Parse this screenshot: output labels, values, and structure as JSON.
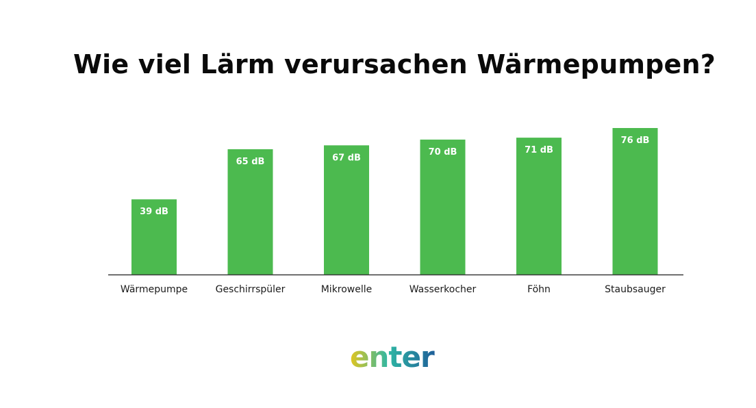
{
  "chart_data": {
    "type": "bar",
    "title": "Wie viel Lärm verursachen Wärmepumpen?",
    "categories": [
      "Wärmepumpe",
      "Geschirrspüler",
      "Mikrowelle",
      "Wasserkocher",
      "Föhn",
      "Staubsauger"
    ],
    "values": [
      39,
      65,
      67,
      70,
      71,
      76
    ],
    "data_labels": [
      "39 dB",
      "65 dB",
      "67 dB",
      "70 dB",
      "71 dB",
      "76 dB"
    ],
    "xlabel": "",
    "ylabel": "",
    "grid": false,
    "legend": "none",
    "bar_color": "#4cba4f"
  },
  "logo": {
    "text": "enter",
    "colors": [
      "#e3c51e",
      "#2fb7a4",
      "#1f5f99"
    ]
  }
}
